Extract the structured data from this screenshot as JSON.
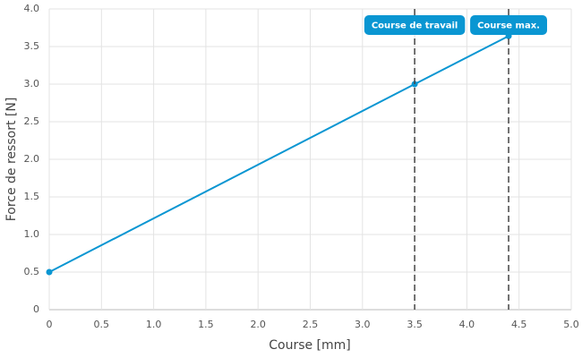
{
  "chart_data": {
    "type": "line",
    "xlabel": "Course [mm]",
    "ylabel": "Force de ressort [N]",
    "x": [
      0,
      3.5,
      4.4
    ],
    "values": [
      0.5,
      3.0,
      3.64
    ],
    "color": "#0a96d2",
    "xlim": [
      0,
      5
    ],
    "xticks": [
      0,
      0.5,
      {
        "value": 1,
        "label": "1.0"
      },
      1.5,
      {
        "value": 2,
        "label": "2.0"
      },
      2.5,
      {
        "value": 3,
        "label": "3.0"
      },
      3.5,
      {
        "value": 4,
        "label": "4.0"
      },
      4.5,
      {
        "value": 5,
        "label": "5.0"
      }
    ],
    "ylim": [
      0,
      4
    ],
    "yticks": [
      0,
      0.5,
      {
        "value": 1,
        "label": "1.0"
      },
      1.5,
      {
        "value": 2,
        "label": "2.0"
      },
      2.5,
      {
        "value": 3,
        "label": "3.0"
      },
      3.5,
      {
        "value": 4,
        "label": "4.0"
      }
    ],
    "grid": true,
    "annotations": [
      {
        "x": 3.5,
        "label": "Course de travail"
      },
      {
        "x": 4.4,
        "label": "Course max."
      }
    ]
  }
}
